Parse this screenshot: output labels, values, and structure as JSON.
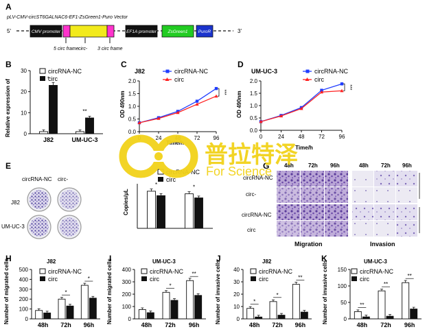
{
  "panels": {
    "A": {
      "letter": "A",
      "vector_name": "pLV-CMV-circST6GALNAC6-EF1-ZsGreen1-Puro Vector",
      "end5": "5'",
      "end3": "3'",
      "boxes": [
        {
          "label": "CMV promoter",
          "color": "#111111"
        },
        {
          "label": "",
          "color": "#ff33cc"
        },
        {
          "label": "",
          "color": "#f2ea1c"
        },
        {
          "label": "",
          "color": "#ff33cc"
        },
        {
          "label": "EF1A promoter",
          "color": "#111111"
        },
        {
          "label": "ZsGreen1",
          "color": "#22cc22"
        },
        {
          "label": "PuroR",
          "color": "#1a33cc"
        }
      ],
      "annotations": [
        "5 circ frame",
        "circ-",
        "3 circ frame"
      ]
    },
    "B": {
      "letter": "B",
      "ylabel": "Relative expression of",
      "legend": [
        "circRNA-NC",
        "circ"
      ],
      "cells": [
        "J82",
        "UM-UC-3"
      ],
      "ymin": 0,
      "ymax": 30,
      "yticks": [
        "0",
        "10",
        "20",
        "30"
      ],
      "values": [
        [
          1.0,
          23.0
        ],
        [
          1.0,
          7.5
        ]
      ],
      "sig": [
        "*",
        "**"
      ]
    },
    "C": {
      "letter": "C",
      "title": "J82",
      "xlabel": "Time/h",
      "ylabel": "OD 490nm",
      "legend": [
        "circRNA-NC",
        "circ"
      ],
      "x": [
        0,
        24,
        48,
        72,
        96
      ],
      "xticks": [
        "0",
        "24",
        "48",
        "72",
        "96"
      ],
      "ymin": 0.0,
      "ymax": 2.0,
      "yticks": [
        "0.0",
        "0.5",
        "1.0",
        "1.5",
        "2.0"
      ],
      "series": [
        {
          "name": "circRNA-NC",
          "color": "#1f3cff",
          "values": [
            0.35,
            0.55,
            0.8,
            1.2,
            1.7
          ]
        },
        {
          "name": "circ",
          "color": "#ff2020",
          "values": [
            0.35,
            0.52,
            0.75,
            1.08,
            1.4
          ]
        }
      ],
      "sig": "***"
    },
    "D": {
      "letter": "D",
      "title": "UM-UC-3",
      "xlabel": "Time/h",
      "ylabel": "OD 490nm",
      "legend": [
        "circRNA-NC",
        "circ"
      ],
      "x": [
        0,
        24,
        48,
        72,
        96
      ],
      "xticks": [
        "0",
        "24",
        "48",
        "72",
        "96"
      ],
      "ymin": 0.0,
      "ymax": 2.0,
      "yticks": [
        "0.0",
        "0.5",
        "1.0",
        "1.5",
        "2.0"
      ],
      "series": [
        {
          "name": "circRNA-NC",
          "color": "#1f3cff",
          "values": [
            0.35,
            0.6,
            0.92,
            1.62,
            1.88
          ]
        },
        {
          "name": "circ",
          "color": "#ff2020",
          "values": [
            0.35,
            0.58,
            0.88,
            1.55,
            1.6
          ]
        }
      ],
      "sig": "***"
    },
    "E": {
      "letter": "E",
      "col_labels": [
        "circRNA-NC",
        "circ-"
      ],
      "row_labels": [
        "J82",
        "UM-UC-3"
      ]
    },
    "F": {
      "ylabel": "Copies/μL",
      "legend": [
        "circRNA-NC",
        "circ"
      ],
      "values": [
        [
          100,
          88
        ],
        [
          93,
          82
        ]
      ],
      "sig": [
        "*",
        "*"
      ],
      "ymin": 0,
      "ymax": 120
    },
    "G": {
      "letter": "G",
      "times": [
        "48h",
        "72h",
        "96h"
      ],
      "row_labels": [
        "circRNA-NC",
        "circ-",
        "circRNA-NC",
        "circ"
      ],
      "captions": [
        "Migration",
        "Invasion"
      ]
    },
    "H": {
      "letter": "H",
      "title": "J82",
      "ylabel": "Number of migrated cells",
      "legend": [
        "circRNA-NC",
        "circ"
      ],
      "categories": [
        "48h",
        "72h",
        "96h"
      ],
      "ymin": 0,
      "ymax": 500,
      "yticks": [
        "0",
        "100",
        "200",
        "300",
        "400",
        "500"
      ],
      "values": [
        [
          85,
          60
        ],
        [
          200,
          130
        ],
        [
          340,
          210
        ]
      ],
      "sig": [
        "",
        "*",
        "*"
      ]
    },
    "I": {
      "letter": "I",
      "title": "UM-UC-3",
      "ylabel": "Number of migrated cells",
      "legend": [
        "circRNA-NC",
        "circ"
      ],
      "categories": [
        "48h",
        "72h",
        "96h"
      ],
      "ymin": 0,
      "ymax": 400,
      "yticks": [
        "0",
        "100",
        "200",
        "300",
        "400"
      ],
      "values": [
        [
          75,
          50
        ],
        [
          215,
          150
        ],
        [
          310,
          190
        ]
      ],
      "sig": [
        "",
        "*",
        "**"
      ]
    },
    "J": {
      "letter": "J",
      "title": "J82",
      "ylabel": "Number of invasive cells",
      "legend": [
        "circRNA-NC",
        "circ"
      ],
      "categories": [
        "48h",
        "72h",
        "96h"
      ],
      "ymin": 0,
      "ymax": 40,
      "yticks": [
        "0",
        "10",
        "20",
        "30",
        "40"
      ],
      "values": [
        [
          8.5,
          1.5
        ],
        [
          14,
          3
        ],
        [
          28,
          5.5
        ]
      ],
      "sig": [
        "*",
        "*",
        "**"
      ]
    },
    "K": {
      "letter": "K",
      "title": "UM-UC-3",
      "ylabel": "Number of invasive cells",
      "legend": [
        "circRNA-NC",
        "circ"
      ],
      "categories": [
        "48h",
        "72h",
        "96h"
      ],
      "ymin": 0,
      "ymax": 150,
      "yticks": [
        "0",
        "50",
        "100",
        "150"
      ],
      "values": [
        [
          22,
          6
        ],
        [
          85,
          8
        ],
        [
          110,
          30
        ]
      ],
      "sig": [
        "**",
        "**",
        "**"
      ]
    }
  },
  "watermark": {
    "cn": "普拉特泽",
    "en": "For Science",
    "color": "#f2d21a"
  },
  "chart_data": [
    {
      "type": "bar",
      "categories": [
        "J82",
        "UM-UC-3"
      ],
      "ylabel": "Relative expression of",
      "series": [
        {
          "name": "circRNA-NC",
          "values": [
            1.0,
            1.0
          ]
        },
        {
          "name": "circ",
          "values": [
            23.0,
            7.5
          ]
        }
      ],
      "ylim": [
        0,
        30
      ]
    },
    {
      "type": "line",
      "title": "J82",
      "xlabel": "Time/h",
      "ylabel": "OD 490nm",
      "x": [
        0,
        24,
        48,
        72,
        96
      ],
      "series": [
        {
          "name": "circRNA-NC",
          "values": [
            0.35,
            0.55,
            0.8,
            1.2,
            1.7
          ]
        },
        {
          "name": "circ",
          "values": [
            0.35,
            0.52,
            0.75,
            1.08,
            1.4
          ]
        }
      ],
      "ylim": [
        0,
        2
      ]
    },
    {
      "type": "line",
      "title": "UM-UC-3",
      "xlabel": "Time/h",
      "ylabel": "OD 490nm",
      "x": [
        0,
        24,
        48,
        72,
        96
      ],
      "series": [
        {
          "name": "circRNA-NC",
          "values": [
            0.35,
            0.6,
            0.92,
            1.62,
            1.88
          ]
        },
        {
          "name": "circ",
          "values": [
            0.35,
            0.58,
            0.88,
            1.55,
            1.6
          ]
        }
      ],
      "ylim": [
        0,
        2
      ]
    },
    {
      "type": "bar",
      "ylabel": "Copies/μL",
      "series": [
        {
          "name": "circRNA-NC",
          "values": [
            100,
            93
          ]
        },
        {
          "name": "circ",
          "values": [
            88,
            82
          ]
        }
      ],
      "ylim": [
        0,
        120
      ]
    },
    {
      "type": "bar",
      "title": "J82",
      "ylabel": "Number of migrated cells",
      "categories": [
        "48h",
        "72h",
        "96h"
      ],
      "series": [
        {
          "name": "circRNA-NC",
          "values": [
            85,
            200,
            340
          ]
        },
        {
          "name": "circ",
          "values": [
            60,
            130,
            210
          ]
        }
      ],
      "ylim": [
        0,
        500
      ]
    },
    {
      "type": "bar",
      "title": "UM-UC-3",
      "ylabel": "Number of migrated cells",
      "categories": [
        "48h",
        "72h",
        "96h"
      ],
      "series": [
        {
          "name": "circRNA-NC",
          "values": [
            75,
            215,
            310
          ]
        },
        {
          "name": "circ",
          "values": [
            50,
            150,
            190
          ]
        }
      ],
      "ylim": [
        0,
        400
      ]
    },
    {
      "type": "bar",
      "title": "J82",
      "ylabel": "Number of invasive cells",
      "categories": [
        "48h",
        "72h",
        "96h"
      ],
      "series": [
        {
          "name": "circRNA-NC",
          "values": [
            8.5,
            14,
            28
          ]
        },
        {
          "name": "circ",
          "values": [
            1.5,
            3,
            5.5
          ]
        }
      ],
      "ylim": [
        0,
        40
      ]
    },
    {
      "type": "bar",
      "title": "UM-UC-3",
      "ylabel": "Number of invasive cells",
      "categories": [
        "48h",
        "72h",
        "96h"
      ],
      "series": [
        {
          "name": "circRNA-NC",
          "values": [
            22,
            85,
            110
          ]
        },
        {
          "name": "circ",
          "values": [
            6,
            8,
            30
          ]
        }
      ],
      "ylim": [
        0,
        150
      ]
    }
  ]
}
